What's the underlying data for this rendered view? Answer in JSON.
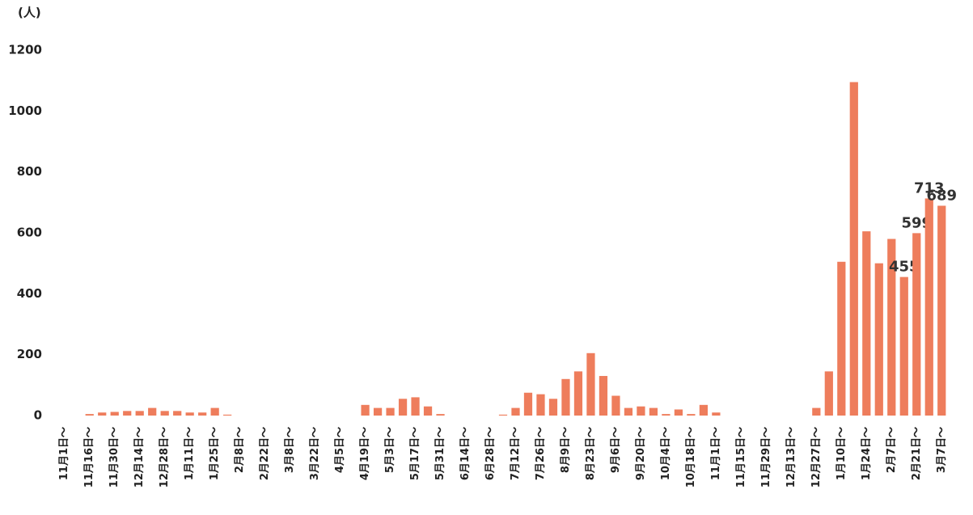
{
  "chart_data": {
    "type": "bar",
    "y_label": "(人)",
    "color": "#ee7d5c",
    "categories": [
      "11月1日～",
      null,
      "11月16日～",
      null,
      "11月30日～",
      null,
      "12月14日～",
      null,
      "12月28日～",
      null,
      "1月11日～",
      null,
      "1月25日～",
      null,
      "2月8日～",
      null,
      "2月22日～",
      null,
      "3月8日～",
      null,
      "3月22日～",
      null,
      "4月5日～",
      null,
      "4月19日～",
      null,
      "5月3日～",
      null,
      "5月17日～",
      null,
      "5月31日～",
      null,
      "6月14日～",
      null,
      "6月28日～",
      null,
      "7月12日～",
      null,
      "7月26日～",
      null,
      "8月9日～",
      null,
      "8月23日～",
      null,
      "9月6日～",
      null,
      "9月20日～",
      null,
      "10月4日～",
      null,
      "10月18日～",
      null,
      "11月1日～",
      null,
      "11月15日～",
      null,
      "11月29日～",
      null,
      "12月13日～",
      null,
      "12月27日～",
      null,
      "1月10日～",
      null,
      "1月24日～",
      null,
      "2月7日～",
      null,
      "2月21日～",
      null,
      "3月7日～"
    ],
    "values": [
      0,
      0,
      5,
      10,
      12,
      15,
      15,
      25,
      15,
      15,
      10,
      10,
      25,
      3,
      0,
      0,
      0,
      0,
      0,
      0,
      0,
      0,
      0,
      0,
      35,
      25,
      25,
      55,
      60,
      30,
      5,
      0,
      0,
      0,
      0,
      3,
      25,
      75,
      70,
      55,
      120,
      145,
      205,
      130,
      65,
      25,
      30,
      25,
      5,
      20,
      5,
      35,
      10,
      0,
      0,
      0,
      0,
      0,
      0,
      0,
      25,
      145,
      505,
      1095,
      605,
      500,
      580,
      455,
      599,
      713,
      689
    ],
    "value_labels": [
      null,
      null,
      null,
      null,
      null,
      null,
      null,
      null,
      null,
      null,
      null,
      null,
      null,
      null,
      null,
      null,
      null,
      null,
      null,
      null,
      null,
      null,
      null,
      null,
      null,
      null,
      null,
      null,
      null,
      null,
      null,
      null,
      null,
      null,
      null,
      null,
      null,
      null,
      null,
      null,
      null,
      null,
      null,
      null,
      null,
      null,
      null,
      null,
      null,
      null,
      null,
      null,
      null,
      null,
      null,
      null,
      null,
      null,
      null,
      null,
      null,
      null,
      null,
      null,
      null,
      null,
      null,
      "455",
      "599",
      "713",
      "689"
    ],
    "ylim": [
      0,
      1200
    ],
    "yticks": [
      0,
      200,
      400,
      600,
      800,
      1000,
      1200
    ],
    "grid": false
  }
}
